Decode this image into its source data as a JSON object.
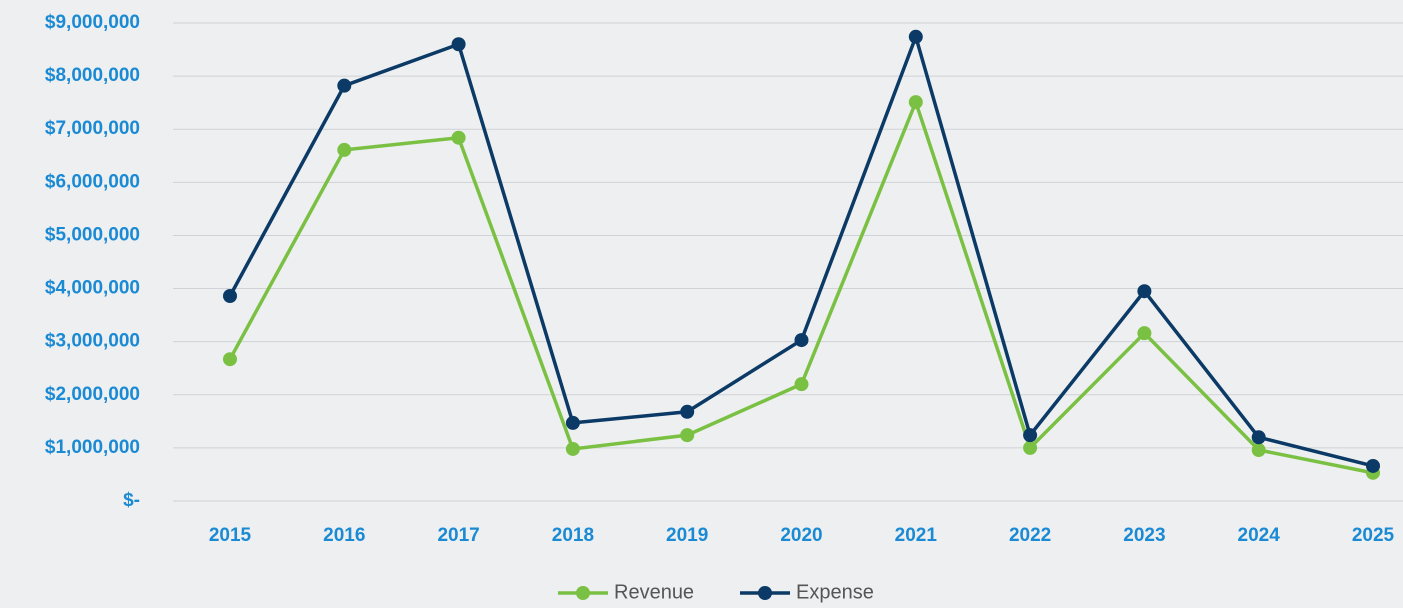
{
  "chart_data": {
    "type": "line",
    "categories": [
      "2015",
      "2016",
      "2017",
      "2018",
      "2019",
      "2020",
      "2021",
      "2022",
      "2023",
      "2024",
      "2025"
    ],
    "series": [
      {
        "name": "Revenue",
        "color": "#7ac143",
        "values": [
          2670000,
          6610000,
          6840000,
          980000,
          1240000,
          2200000,
          7510000,
          1000000,
          3160000,
          960000,
          530000
        ]
      },
      {
        "name": "Expense",
        "color": "#0b3a66",
        "values": [
          3860000,
          7820000,
          8600000,
          1470000,
          1680000,
          3030000,
          8740000,
          1240000,
          3950000,
          1200000,
          660000
        ]
      }
    ],
    "ylim": [
      0,
      9000000
    ],
    "yticks": [
      {
        "value": 0,
        "label": "$-"
      },
      {
        "value": 1000000,
        "label": "$1,000,000"
      },
      {
        "value": 2000000,
        "label": "$2,000,000"
      },
      {
        "value": 3000000,
        "label": "$3,000,000"
      },
      {
        "value": 4000000,
        "label": "$4,000,000"
      },
      {
        "value": 5000000,
        "label": "$5,000,000"
      },
      {
        "value": 6000000,
        "label": "$6,000,000"
      },
      {
        "value": 7000000,
        "label": "$7,000,000"
      },
      {
        "value": 8000000,
        "label": "$8,000,000"
      },
      {
        "value": 9000000,
        "label": "$9,000,000"
      }
    ],
    "grid": true,
    "legend": "bottom"
  }
}
